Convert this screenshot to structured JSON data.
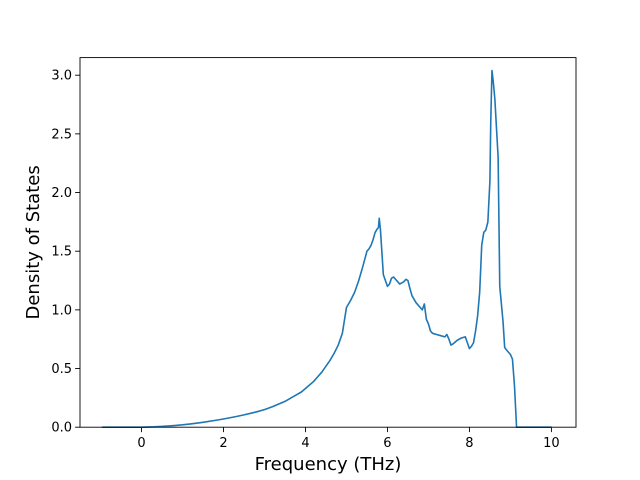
{
  "chart_data": {
    "type": "line",
    "title": "",
    "xlabel": "Frequency (THz)",
    "ylabel": "Density of States",
    "xlim": [
      -1.5,
      10.6
    ],
    "ylim": [
      0,
      3.15
    ],
    "xticks": [
      0,
      2,
      4,
      6,
      8,
      10
    ],
    "xtick_labels": [
      "0",
      "2",
      "4",
      "6",
      "8",
      "10"
    ],
    "yticks": [
      0.0,
      0.5,
      1.0,
      1.5,
      2.0,
      2.5,
      3.0
    ],
    "ytick_labels": [
      "0.0",
      "0.5",
      "1.0",
      "1.5",
      "2.0",
      "2.5",
      "3.0"
    ],
    "grid": false,
    "legend": "none",
    "line_color": "#1f77b4",
    "series": [
      {
        "x": [
          -0.95,
          0.0,
          0.3,
          0.5,
          0.8,
          1.0,
          1.2,
          1.5,
          1.8,
          2.0,
          2.3,
          2.5,
          2.8,
          3.0,
          3.2,
          3.3,
          3.5,
          3.6,
          3.7,
          3.9,
          4.0,
          4.1,
          4.2,
          4.3,
          4.4,
          4.5,
          4.6,
          4.7,
          4.8,
          4.85,
          4.9,
          5.0,
          5.1,
          5.2,
          5.3,
          5.4,
          5.5,
          5.55,
          5.6,
          5.65,
          5.7,
          5.75,
          5.78,
          5.8,
          5.83,
          5.9,
          6.0,
          6.05,
          6.1,
          6.15,
          6.2,
          6.3,
          6.4,
          6.45,
          6.5,
          6.55,
          6.6,
          6.7,
          6.8,
          6.85,
          6.9,
          6.95,
          7.0,
          7.05,
          7.1,
          7.2,
          7.3,
          7.4,
          7.45,
          7.5,
          7.55,
          7.6,
          7.7,
          7.8,
          7.9,
          7.95,
          8.0,
          8.05,
          8.1,
          8.15,
          8.2,
          8.25,
          8.3,
          8.35,
          8.4,
          8.45,
          8.5,
          8.52,
          8.55,
          8.58,
          8.62,
          8.66,
          8.7,
          8.74,
          8.78,
          8.82,
          8.86,
          8.9,
          8.95,
          9.0,
          9.05,
          9.1,
          9.15,
          9.2,
          9.3,
          9.5,
          10.0
        ],
        "values": [
          0.0,
          0.0,
          0.003,
          0.007,
          0.014,
          0.02,
          0.028,
          0.042,
          0.058,
          0.07,
          0.09,
          0.105,
          0.13,
          0.15,
          0.175,
          0.19,
          0.22,
          0.24,
          0.26,
          0.3,
          0.33,
          0.36,
          0.39,
          0.43,
          0.47,
          0.52,
          0.57,
          0.63,
          0.7,
          0.75,
          0.8,
          1.02,
          1.08,
          1.15,
          1.25,
          1.37,
          1.5,
          1.52,
          1.55,
          1.6,
          1.66,
          1.69,
          1.7,
          1.78,
          1.68,
          1.3,
          1.2,
          1.22,
          1.27,
          1.28,
          1.26,
          1.22,
          1.24,
          1.26,
          1.25,
          1.18,
          1.12,
          1.06,
          1.02,
          1.0,
          1.05,
          0.92,
          0.88,
          0.82,
          0.8,
          0.79,
          0.78,
          0.77,
          0.79,
          0.75,
          0.7,
          0.71,
          0.74,
          0.76,
          0.77,
          0.72,
          0.67,
          0.69,
          0.72,
          0.82,
          0.95,
          1.15,
          1.55,
          1.66,
          1.68,
          1.75,
          2.1,
          2.6,
          3.04,
          2.95,
          2.8,
          2.55,
          2.3,
          1.2,
          1.05,
          0.9,
          0.68,
          0.66,
          0.64,
          0.62,
          0.58,
          0.35,
          0.0,
          0.0,
          0.0,
          0.0,
          0.0
        ]
      }
    ]
  }
}
